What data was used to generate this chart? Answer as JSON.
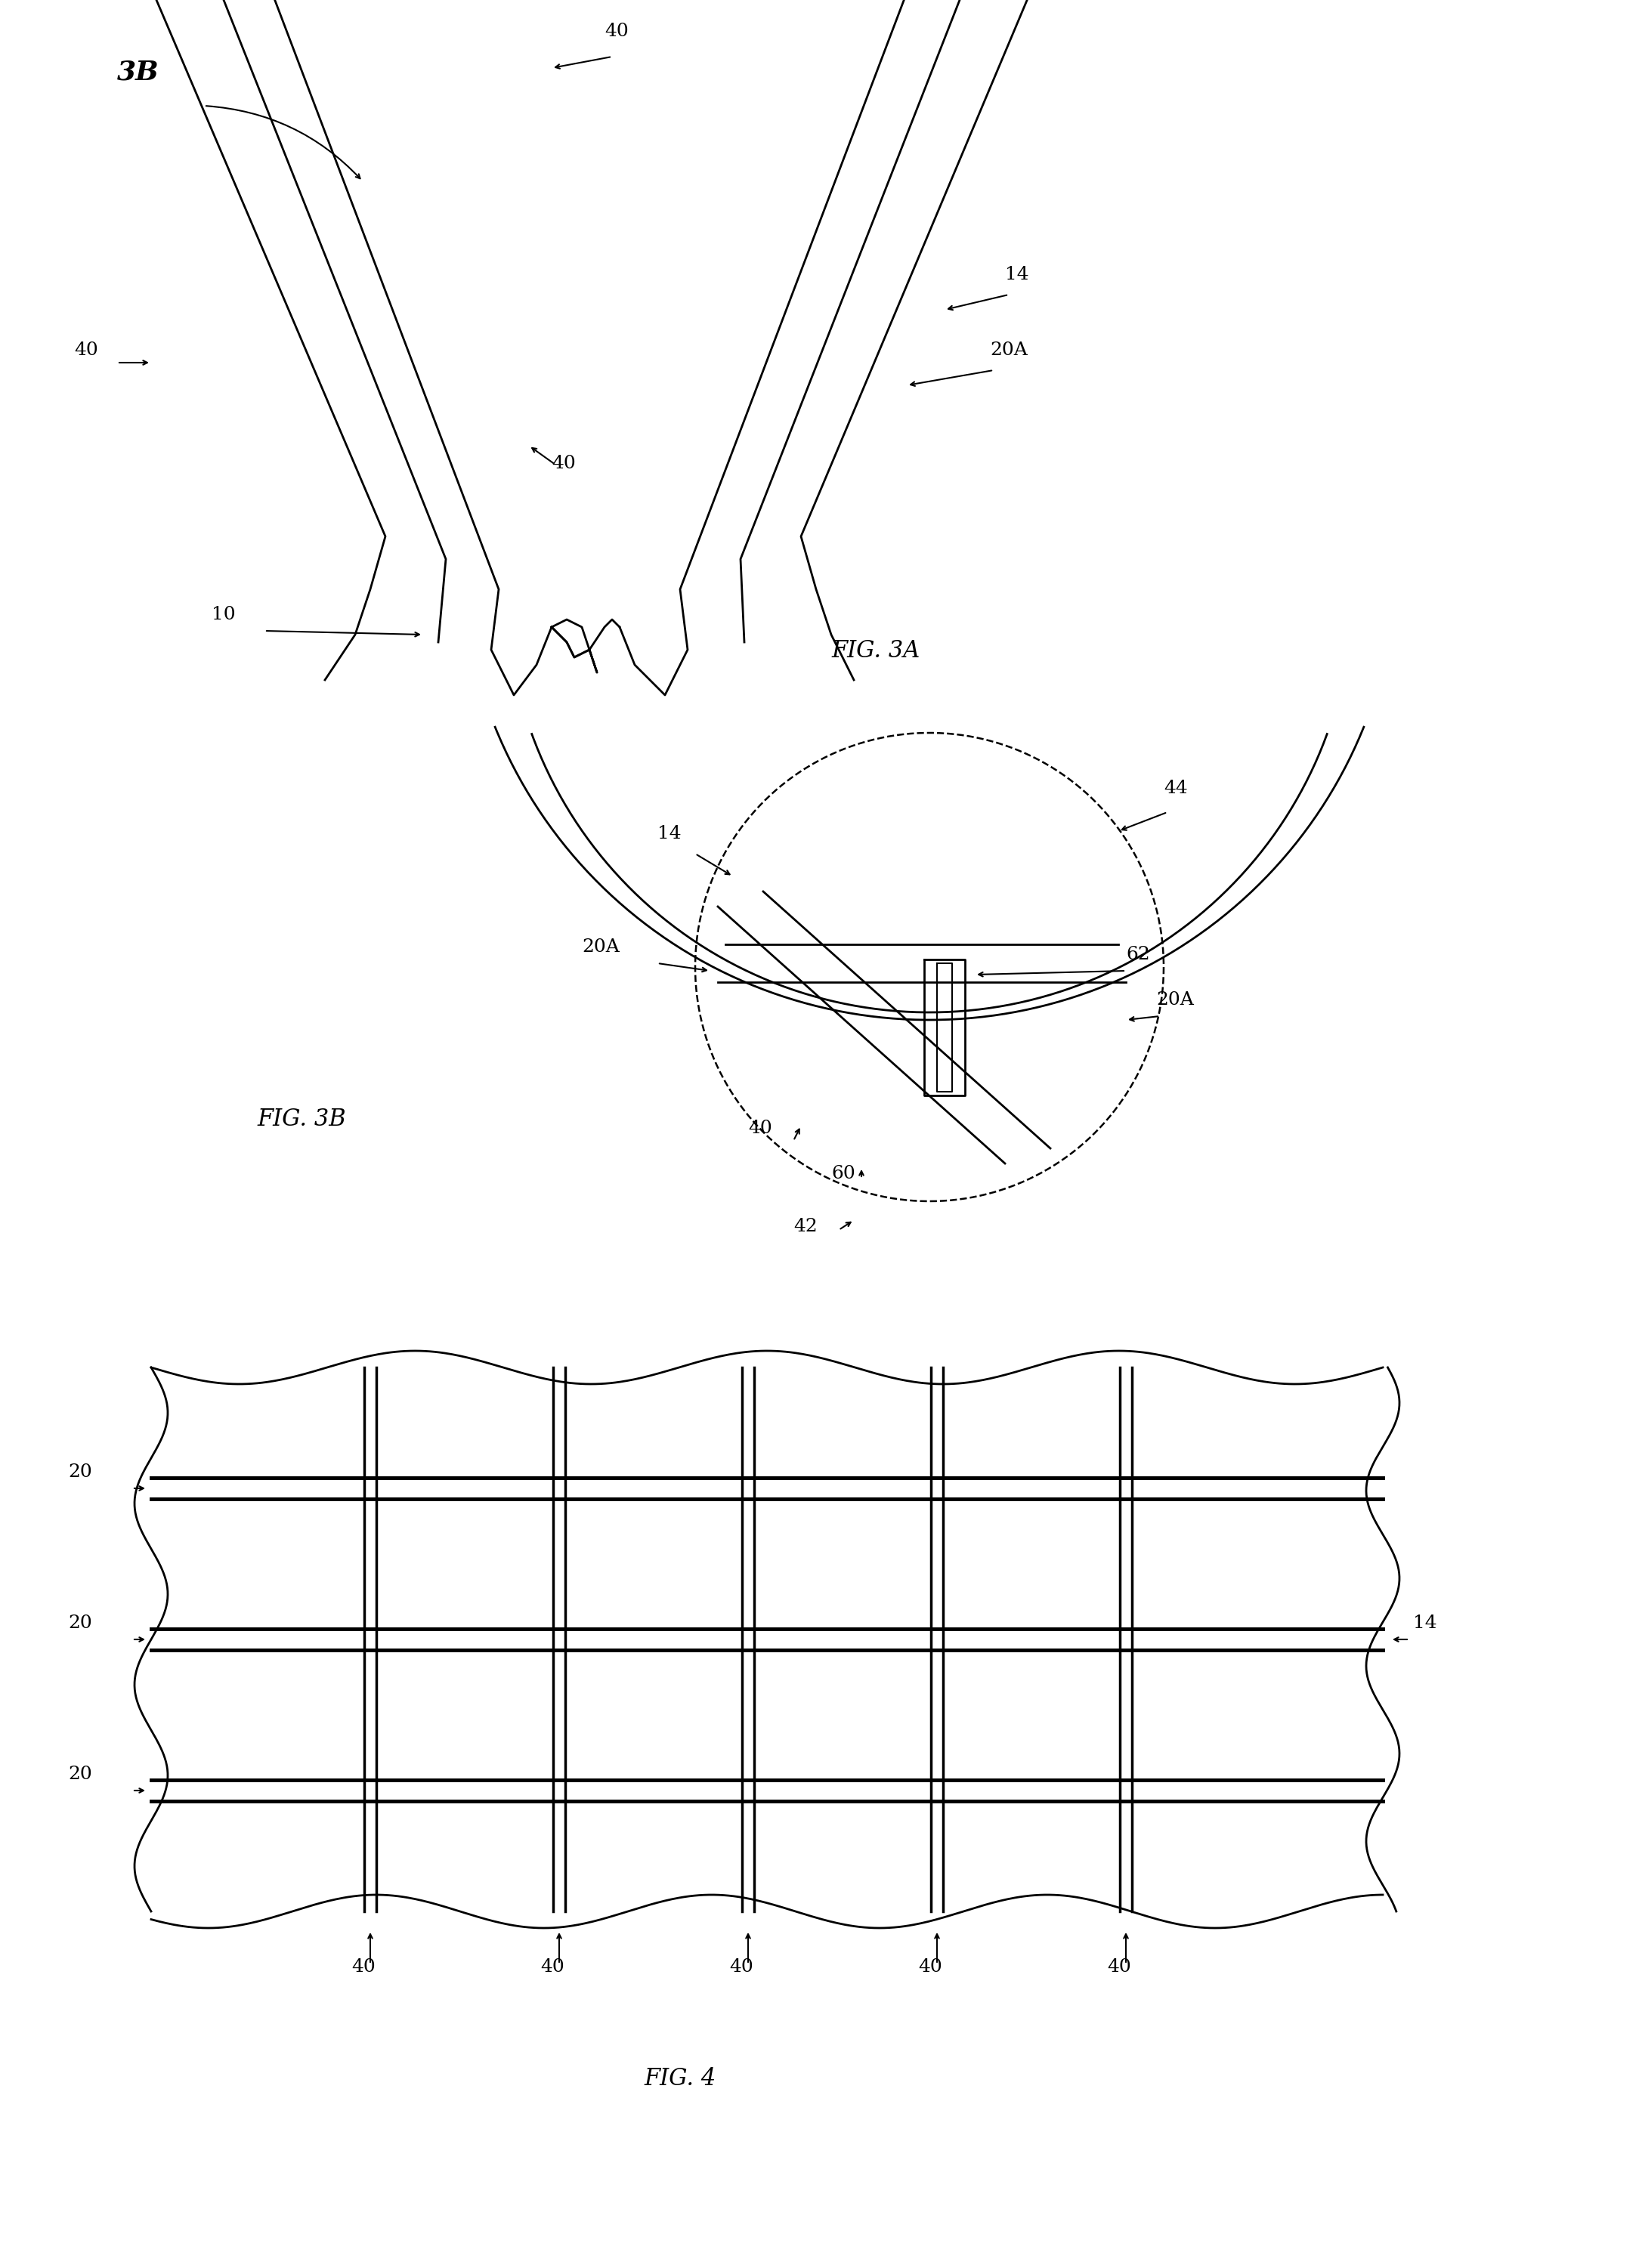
{
  "fig_width": 21.73,
  "fig_height": 30.02,
  "bg_color": "#ffffff",
  "line_color": "#000000",
  "fig3a_title": "FIG. 3A",
  "fig3b_title": "FIG. 3B",
  "fig4_title": "FIG. 4",
  "lw_main": 2.0,
  "lw_thick": 3.5,
  "lw_thin": 1.5,
  "lw_dashed": 1.8,
  "fontsize_label": 18,
  "fontsize_title": 22
}
